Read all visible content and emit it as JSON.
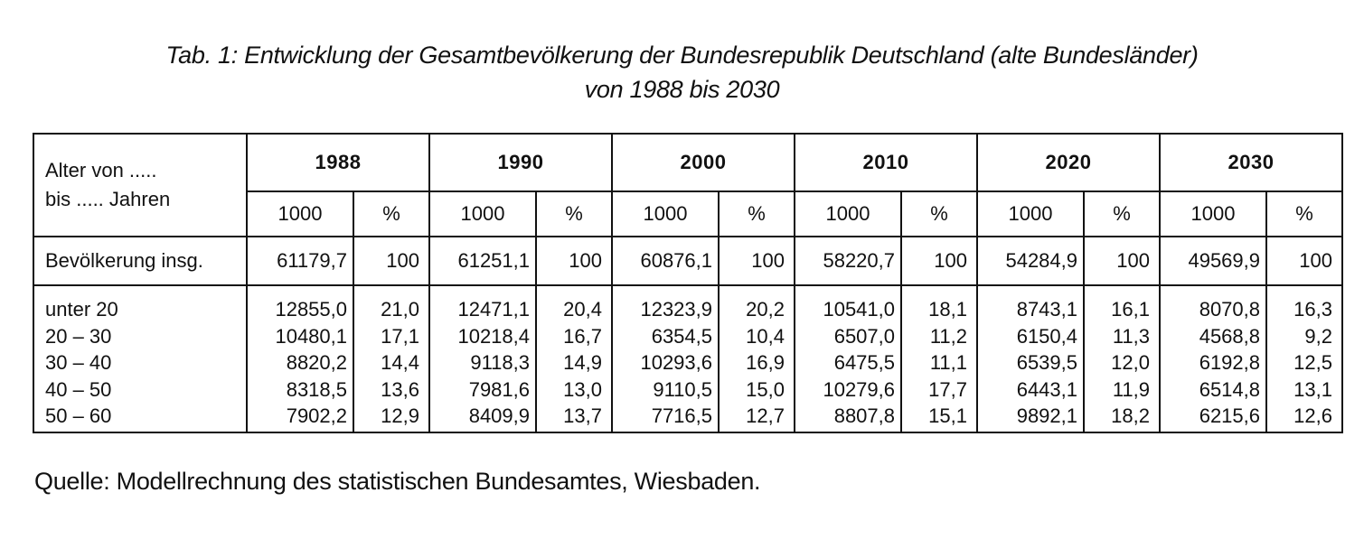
{
  "title": {
    "line1": "Tab. 1: Entwicklung der Gesamtbevölkerung der Bundesrepublik Deutschland (alte Bundesländer)",
    "line2": "von 1988 bis 2030"
  },
  "header": {
    "age_label_line1": "Alter von .....",
    "age_label_line2": "bis ..... Jahren",
    "years": [
      "1988",
      "1990",
      "2000",
      "2010",
      "2020",
      "2030"
    ],
    "unit_abs": "1000",
    "unit_pct": "%"
  },
  "total": {
    "label": "Bevölkerung insg.",
    "values": [
      {
        "abs": "61179,7",
        "pct": "100"
      },
      {
        "abs": "61251,1",
        "pct": "100"
      },
      {
        "abs": "60876,1",
        "pct": "100"
      },
      {
        "abs": "58220,7",
        "pct": "100"
      },
      {
        "abs": "54284,9",
        "pct": "100"
      },
      {
        "abs": "49569,9",
        "pct": "100"
      }
    ]
  },
  "age_groups": {
    "labels": [
      "unter 20",
      "20 – 30",
      "30 – 40",
      "40 – 50",
      "50 – 60"
    ],
    "columns": [
      {
        "abs": [
          "12855,0",
          "10480,1",
          "8820,2",
          "8318,5",
          "7902,2"
        ],
        "pct": [
          "21,0",
          "17,1",
          "14,4",
          "13,6",
          "12,9"
        ]
      },
      {
        "abs": [
          "12471,1",
          "10218,4",
          "9118,3",
          "7981,6",
          "8409,9"
        ],
        "pct": [
          "20,4",
          "16,7",
          "14,9",
          "13,0",
          "13,7"
        ]
      },
      {
        "abs": [
          "12323,9",
          "6354,5",
          "10293,6",
          "9110,5",
          "7716,5"
        ],
        "pct": [
          "20,2",
          "10,4",
          "16,9",
          "15,0",
          "12,7"
        ]
      },
      {
        "abs": [
          "10541,0",
          "6507,0",
          "6475,5",
          "10279,6",
          "8807,8"
        ],
        "pct": [
          "18,1",
          "11,2",
          "11,1",
          "17,7",
          "15,1"
        ]
      },
      {
        "abs": [
          "8743,1",
          "6150,4",
          "6539,5",
          "6443,1",
          "9892,1"
        ],
        "pct": [
          "16,1",
          "11,3",
          "12,0",
          "11,9",
          "18,2"
        ]
      },
      {
        "abs": [
          "8070,8",
          "4568,8",
          "6192,8",
          "6514,8",
          "6215,6"
        ],
        "pct": [
          "16,3",
          "9,2",
          "12,5",
          "13,1",
          "12,6"
        ]
      }
    ]
  },
  "source": "Quelle: Modellrechnung des statistischen Bundesamtes, Wiesbaden."
}
